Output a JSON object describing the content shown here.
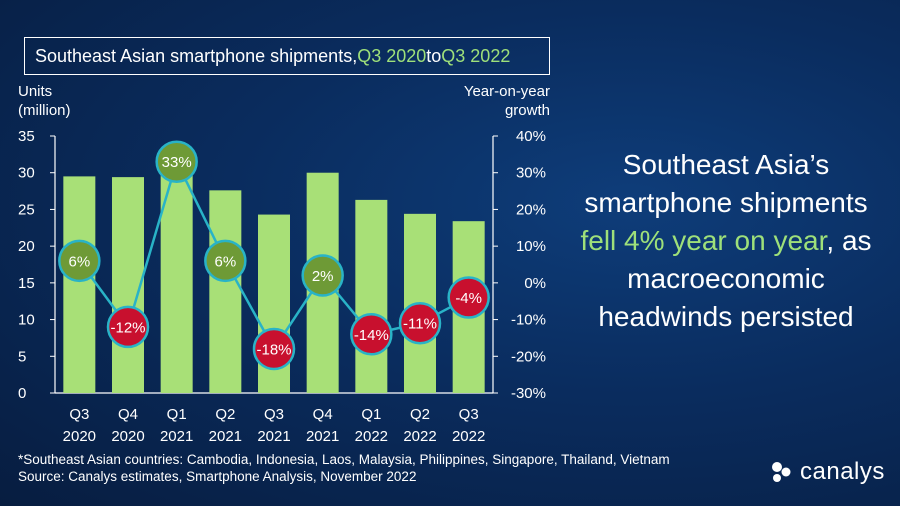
{
  "title": {
    "prefix": "Southeast Asian smartphone shipments, ",
    "from": "Q3 2020",
    "mid": " to ",
    "to": "Q3 2022"
  },
  "left_axis_title": [
    "Units",
    "(million)"
  ],
  "right_axis_title": [
    "Year-on-year",
    "growth"
  ],
  "headline": {
    "part1": "Southeast Asia’s smartphone shipments ",
    "highlight": "fell 4% year on year",
    "part2": ", as macroeconomic headwinds persisted"
  },
  "footnote": {
    "countries": "*Southeast Asian countries: Cambodia, Indonesia, Laos, Malaysia, Philippines, Singapore, Thailand, Vietnam",
    "source": "Source: Canalys estimates, Smartphone Analysis, November 2022"
  },
  "logo": {
    "text": "canalys",
    "icon": "canalys-logo-icon"
  },
  "colors": {
    "bar": "#a8e077",
    "line": "#29b3c7",
    "positive_marker": "#6e9a36",
    "negative_marker": "#c8102e",
    "highlight_text": "#9ee07a"
  },
  "chart_data": {
    "type": "bar+line",
    "categories": [
      [
        "Q3",
        "2020"
      ],
      [
        "Q4",
        "2020"
      ],
      [
        "Q1",
        "2021"
      ],
      [
        "Q2",
        "2021"
      ],
      [
        "Q3",
        "2021"
      ],
      [
        "Q4",
        "2021"
      ],
      [
        "Q1",
        "2022"
      ],
      [
        "Q2",
        "2022"
      ],
      [
        "Q3",
        "2022"
      ]
    ],
    "bars": {
      "values": [
        29.5,
        29.4,
        31.5,
        27.6,
        24.3,
        30.0,
        26.3,
        24.4,
        23.4
      ]
    },
    "growth": {
      "values": [
        6,
        -12,
        33,
        6,
        -18,
        2,
        -14,
        -11,
        -4
      ],
      "labels": [
        "6%",
        "-12%",
        "33%",
        "6%",
        "-18%",
        "2%",
        "-14%",
        "-11%",
        "-4%"
      ]
    },
    "left_axis": {
      "min": 0,
      "max": 35,
      "ticks": [
        "0",
        "5",
        "10",
        "15",
        "20",
        "25",
        "30",
        "35"
      ]
    },
    "right_axis": {
      "min": -30,
      "max": 40,
      "ticks": [
        "-30%",
        "-20%",
        "-10%",
        "0%",
        "10%",
        "20%",
        "30%",
        "40%"
      ]
    }
  }
}
